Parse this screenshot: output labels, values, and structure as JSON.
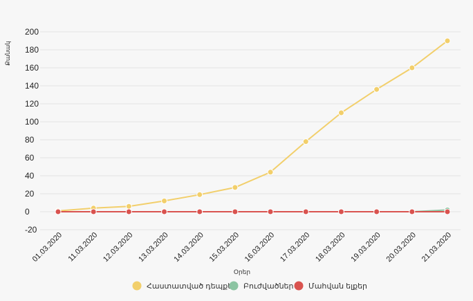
{
  "chart_data": {
    "type": "line",
    "xlabel": "Օրեր",
    "ylabel": "Քանակ",
    "ylim": [
      -20,
      200
    ],
    "yticks": [
      -20,
      0,
      20,
      40,
      60,
      80,
      100,
      120,
      140,
      160,
      180,
      200
    ],
    "categories": [
      "01.03.2020",
      "11.03.2020",
      "12.03.2020",
      "13.03.2020",
      "14.03.2020",
      "15.03.2020",
      "16.03.2020",
      "17.03.2020",
      "18.03.2020",
      "19.03.2020",
      "20.03.2020",
      "21.03.2020"
    ],
    "grid": true,
    "legend_position": "bottom",
    "series": [
      {
        "name": "Հաստատված դեպքեր",
        "color": "#f2cf6b",
        "values": [
          1,
          4,
          6,
          12,
          19,
          27,
          44,
          78,
          110,
          136,
          160,
          190
        ]
      },
      {
        "name": "Բուժվածներ",
        "color": "#8cc4a2",
        "values": [
          0,
          0,
          0,
          0,
          0,
          0,
          0,
          0,
          0,
          0,
          0,
          2
        ]
      },
      {
        "name": "Մահվան ելքեր",
        "color": "#d9534f",
        "values": [
          0,
          0,
          0,
          0,
          0,
          0,
          0,
          0,
          0,
          0,
          0,
          0
        ]
      }
    ]
  }
}
